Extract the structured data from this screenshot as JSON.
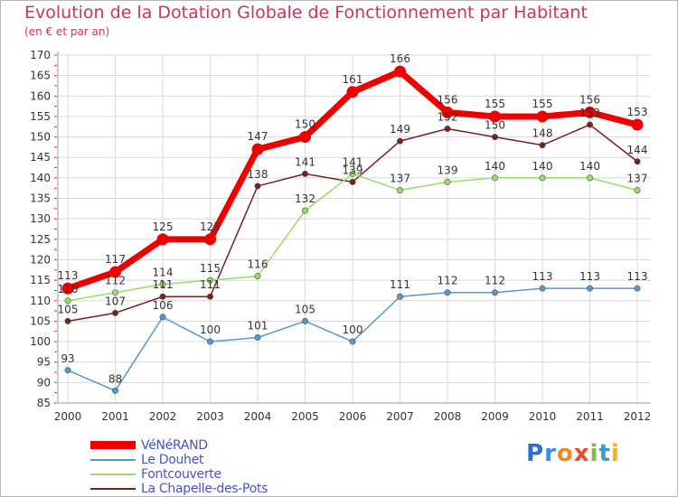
{
  "title": "Evolution de la Dotation Globale de Fonctionnement par Habitant",
  "subtitle": "(en € et par an)",
  "logo": {
    "letters": [
      "P",
      "r",
      "o",
      "x",
      "i",
      "t",
      "i"
    ],
    "colors": [
      "#2f6fd0",
      "#3a8fdc",
      "#f08a20",
      "#e84c2a",
      "#7bbf3a",
      "#3a9ad8",
      "#f0b020"
    ]
  },
  "chart_data": {
    "type": "line",
    "title": "Evolution de la Dotation Globale de Fonctionnement par Habitant",
    "subtitle": "(en € et par an)",
    "x": [
      "2000",
      "2001",
      "2002",
      "2003",
      "2004",
      "2005",
      "2006",
      "2007",
      "2008",
      "2009",
      "2010",
      "2011",
      "2012"
    ],
    "ylim": [
      85,
      170
    ],
    "yticks": [
      85,
      90,
      95,
      100,
      105,
      110,
      115,
      120,
      125,
      130,
      135,
      140,
      145,
      150,
      155,
      160,
      165,
      170
    ],
    "grid": true,
    "legend_position": "bottom-left",
    "series": [
      {
        "name": "VéNéRAND",
        "color": "#ee0000",
        "values": [
          113,
          117,
          125,
          125,
          147,
          150,
          161,
          166,
          156,
          155,
          155,
          156,
          153
        ]
      },
      {
        "name": "Le Douhet",
        "color": "#5599cc",
        "values": [
          93,
          88,
          106,
          100,
          101,
          105,
          100,
          111,
          112,
          112,
          113,
          113,
          113
        ]
      },
      {
        "name": "Fontcouverte",
        "color": "#99dd66",
        "values": [
          110,
          112,
          114,
          115,
          116,
          132,
          141,
          137,
          139,
          140,
          140,
          140,
          137
        ]
      },
      {
        "name": "La Chapelle-des-Pots",
        "color": "#772222",
        "values": [
          105,
          107,
          111,
          111,
          138,
          141,
          139,
          149,
          152,
          150,
          148,
          153,
          144
        ]
      }
    ]
  }
}
